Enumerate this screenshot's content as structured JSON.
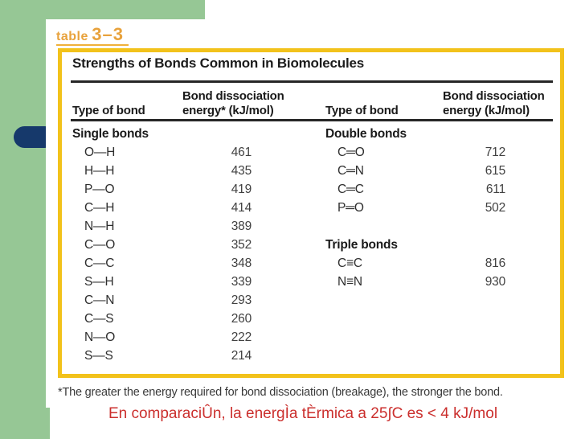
{
  "figure": {
    "label_word": "table",
    "label_number": "3–3",
    "title": "Strengths of Bonds Common in Biomolecules",
    "col_headers": {
      "type1": "Type of bond",
      "energy1_line1": "Bond dissociation",
      "energy1_line2": "energy* (kJ/mol)",
      "type2": "Type of bond",
      "energy2_line1": "Bond dissociation",
      "energy2_line2": "energy (kJ/mol)"
    },
    "rows": [
      {
        "l": "Single bonds",
        "lv": "",
        "r": "Double bonds",
        "rv": "",
        "lh": true,
        "rh": true
      },
      {
        "l": "O—H",
        "lv": "461",
        "r": "C═O",
        "rv": "712"
      },
      {
        "l": "H—H",
        "lv": "435",
        "r": "C═N",
        "rv": "615"
      },
      {
        "l": "P—O",
        "lv": "419",
        "r": "C═C",
        "rv": "611"
      },
      {
        "l": "C—H",
        "lv": "414",
        "r": "P═O",
        "rv": "502"
      },
      {
        "l": "N—H",
        "lv": "389",
        "r": "",
        "rv": ""
      },
      {
        "l": "C—O",
        "lv": "352",
        "r": "Triple bonds",
        "rv": "",
        "rh": true
      },
      {
        "l": "C—C",
        "lv": "348",
        "r": "C≡C",
        "rv": "816"
      },
      {
        "l": "S—H",
        "lv": "339",
        "r": "N≡N",
        "rv": "930"
      },
      {
        "l": "C—N",
        "lv": "293",
        "r": "",
        "rv": ""
      },
      {
        "l": "C—S",
        "lv": "260",
        "r": "",
        "rv": ""
      },
      {
        "l": "N—O",
        "lv": "222",
        "r": "",
        "rv": ""
      },
      {
        "l": "S—S",
        "lv": "214",
        "r": "",
        "rv": ""
      }
    ],
    "footnote": "*The greater the energy required for bond dissociation (breakage), the stronger the bond."
  },
  "caption": {
    "text": "En comparaciÛn, la energÌa tÈrmica a 25∫C es < 4 kJ/mol"
  },
  "colors": {
    "green_accent": "#96C795",
    "navy_bullet": "#16396B",
    "yellow_border": "#F2C21B",
    "orange_label": "#E8A23C",
    "red_caption": "#CB2F2D"
  }
}
